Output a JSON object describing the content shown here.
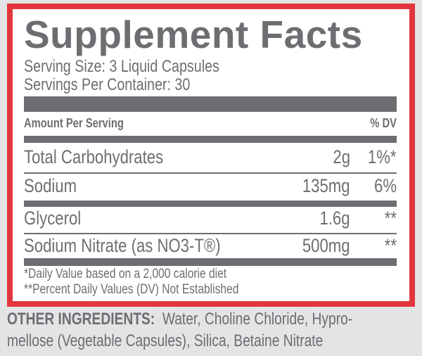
{
  "title": "Supplement Facts",
  "serving_size": "Serving Size: 3 Liquid Capsules",
  "servings_per_container": "Servings Per Container: 30",
  "header": {
    "amount_per_serving": "Amount Per Serving",
    "dv": "% DV"
  },
  "rows": [
    {
      "name": "Total Carbohydrates",
      "amount": "2g",
      "dv": "1%*"
    },
    {
      "name": "Sodium",
      "amount": "135mg",
      "dv": "6%"
    },
    {
      "name": "Glycerol",
      "amount": "1.6g",
      "dv": "**"
    },
    {
      "name": "Sodium Nitrate (as NO3-T®)",
      "amount": "500mg",
      "dv": "**"
    }
  ],
  "footnotes": [
    "*Daily Value based on a 2,000 calorie diet",
    "**Percent Daily Values (DV) Not Established"
  ],
  "other_ingredients": {
    "label": "OTHER INGREDIENTS:",
    "line1": "Water, Choline Chloride, Hypro-",
    "line2": "mellose (Vegetable Capsules), Silica, Betaine Nitrate"
  },
  "colors": {
    "border": "#e3353d",
    "text": "#6d6e71",
    "background": "#e2e4e5"
  }
}
